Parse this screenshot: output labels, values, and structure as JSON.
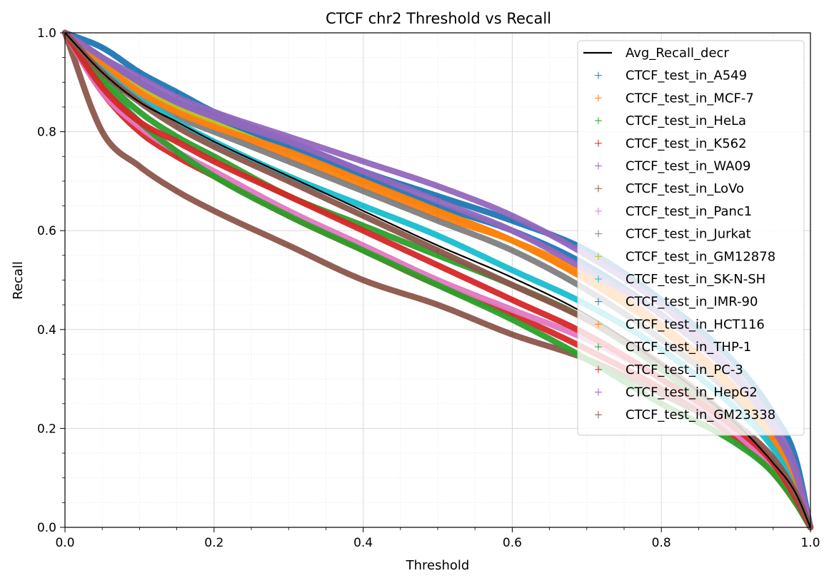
{
  "chart_data": {
    "type": "scatter",
    "title": "CTCF chr2 Threshold vs Recall",
    "xlabel": "Threshold",
    "ylabel": "Recall",
    "xlim": [
      0.0,
      1.0
    ],
    "ylim": [
      0.0,
      1.0
    ],
    "xticks": [
      "0.0",
      "0.2",
      "0.4",
      "0.6",
      "0.8",
      "1.0"
    ],
    "yticks": [
      "0.0",
      "0.2",
      "0.4",
      "0.6",
      "0.8",
      "1.0"
    ],
    "grid": true,
    "minor_grid": true,
    "legend_position": "top-right",
    "x": [
      0.0,
      0.05,
      0.1,
      0.15,
      0.2,
      0.3,
      0.4,
      0.5,
      0.6,
      0.7,
      0.8,
      0.9,
      0.95,
      0.98,
      1.0
    ],
    "average": {
      "name": "Avg_Recall_decr",
      "color": "#000000",
      "values": [
        1.0,
        0.92,
        0.86,
        0.82,
        0.78,
        0.71,
        0.64,
        0.57,
        0.505,
        0.43,
        0.33,
        0.21,
        0.13,
        0.07,
        0.0
      ]
    },
    "series": [
      {
        "name": "CTCF_test_in_A549",
        "color": "#1f77b4",
        "values": [
          1.0,
          0.97,
          0.92,
          0.88,
          0.84,
          0.78,
          0.72,
          0.67,
          0.62,
          0.56,
          0.46,
          0.33,
          0.23,
          0.14,
          0.0
        ]
      },
      {
        "name": "CTCF_test_in_MCF-7",
        "color": "#ff7f0e",
        "values": [
          1.0,
          0.93,
          0.88,
          0.84,
          0.81,
          0.75,
          0.69,
          0.63,
          0.58,
          0.51,
          0.41,
          0.28,
          0.19,
          0.1,
          0.0
        ]
      },
      {
        "name": "CTCF_test_in_HeLa",
        "color": "#2ca02c",
        "values": [
          1.0,
          0.91,
          0.84,
          0.79,
          0.75,
          0.67,
          0.61,
          0.55,
          0.49,
          0.42,
          0.32,
          0.19,
          0.12,
          0.06,
          0.0
        ]
      },
      {
        "name": "CTCF_test_in_K562",
        "color": "#d62728",
        "values": [
          1.0,
          0.88,
          0.8,
          0.75,
          0.71,
          0.63,
          0.56,
          0.49,
          0.43,
          0.36,
          0.28,
          0.18,
          0.11,
          0.05,
          0.0
        ]
      },
      {
        "name": "CTCF_test_in_WA09",
        "color": "#9467bd",
        "values": [
          1.0,
          0.95,
          0.91,
          0.87,
          0.84,
          0.79,
          0.74,
          0.69,
          0.63,
          0.55,
          0.45,
          0.31,
          0.21,
          0.12,
          0.0
        ]
      },
      {
        "name": "CTCF_test_in_LoVo",
        "color": "#8c564b",
        "values": [
          1.0,
          0.8,
          0.73,
          0.68,
          0.64,
          0.57,
          0.5,
          0.45,
          0.39,
          0.34,
          0.27,
          0.19,
          0.13,
          0.07,
          0.0
        ]
      },
      {
        "name": "CTCF_test_in_Panc1",
        "color": "#e377c2",
        "values": [
          1.0,
          0.88,
          0.81,
          0.76,
          0.72,
          0.64,
          0.57,
          0.5,
          0.44,
          0.38,
          0.3,
          0.19,
          0.12,
          0.06,
          0.0
        ]
      },
      {
        "name": "CTCF_test_in_Jurkat",
        "color": "#7f7f7f",
        "values": [
          1.0,
          0.92,
          0.87,
          0.83,
          0.8,
          0.74,
          0.68,
          0.62,
          0.56,
          0.48,
          0.38,
          0.26,
          0.17,
          0.09,
          0.0
        ]
      },
      {
        "name": "CTCF_test_in_GM12878",
        "color": "#bcbd22",
        "values": [
          1.0,
          0.94,
          0.89,
          0.85,
          0.82,
          0.76,
          0.7,
          0.64,
          0.58,
          0.5,
          0.4,
          0.27,
          0.18,
          0.1,
          0.0
        ]
      },
      {
        "name": "CTCF_test_in_SK-N-SH",
        "color": "#17becf",
        "values": [
          1.0,
          0.93,
          0.87,
          0.82,
          0.78,
          0.71,
          0.65,
          0.59,
          0.52,
          0.45,
          0.36,
          0.24,
          0.16,
          0.08,
          0.0
        ]
      },
      {
        "name": "CTCF_test_in_IMR-90",
        "color": "#1f77b4",
        "values": [
          1.0,
          0.95,
          0.9,
          0.86,
          0.83,
          0.77,
          0.71,
          0.65,
          0.6,
          0.53,
          0.43,
          0.3,
          0.2,
          0.11,
          0.0
        ]
      },
      {
        "name": "CTCF_test_in_HCT116",
        "color": "#ff7f0e",
        "values": [
          1.0,
          0.94,
          0.88,
          0.84,
          0.81,
          0.76,
          0.7,
          0.64,
          0.58,
          0.5,
          0.4,
          0.27,
          0.18,
          0.1,
          0.0
        ]
      },
      {
        "name": "CTCF_test_in_THP-1",
        "color": "#2ca02c",
        "values": [
          1.0,
          0.9,
          0.82,
          0.76,
          0.71,
          0.63,
          0.56,
          0.49,
          0.42,
          0.34,
          0.25,
          0.17,
          0.11,
          0.05,
          0.0
        ]
      },
      {
        "name": "CTCF_test_in_PC-3",
        "color": "#d62728",
        "values": [
          1.0,
          0.89,
          0.82,
          0.78,
          0.74,
          0.67,
          0.6,
          0.53,
          0.46,
          0.39,
          0.3,
          0.2,
          0.13,
          0.06,
          0.0
        ]
      },
      {
        "name": "CTCF_test_in_HepG2",
        "color": "#9467bd",
        "values": [
          1.0,
          0.95,
          0.9,
          0.86,
          0.83,
          0.78,
          0.72,
          0.66,
          0.6,
          0.52,
          0.43,
          0.3,
          0.2,
          0.11,
          0.0
        ]
      },
      {
        "name": "CTCF_test_in_GM23338",
        "color": "#8c564b",
        "values": [
          1.0,
          0.92,
          0.86,
          0.81,
          0.77,
          0.7,
          0.63,
          0.56,
          0.49,
          0.42,
          0.33,
          0.21,
          0.14,
          0.07,
          0.0
        ]
      }
    ]
  }
}
